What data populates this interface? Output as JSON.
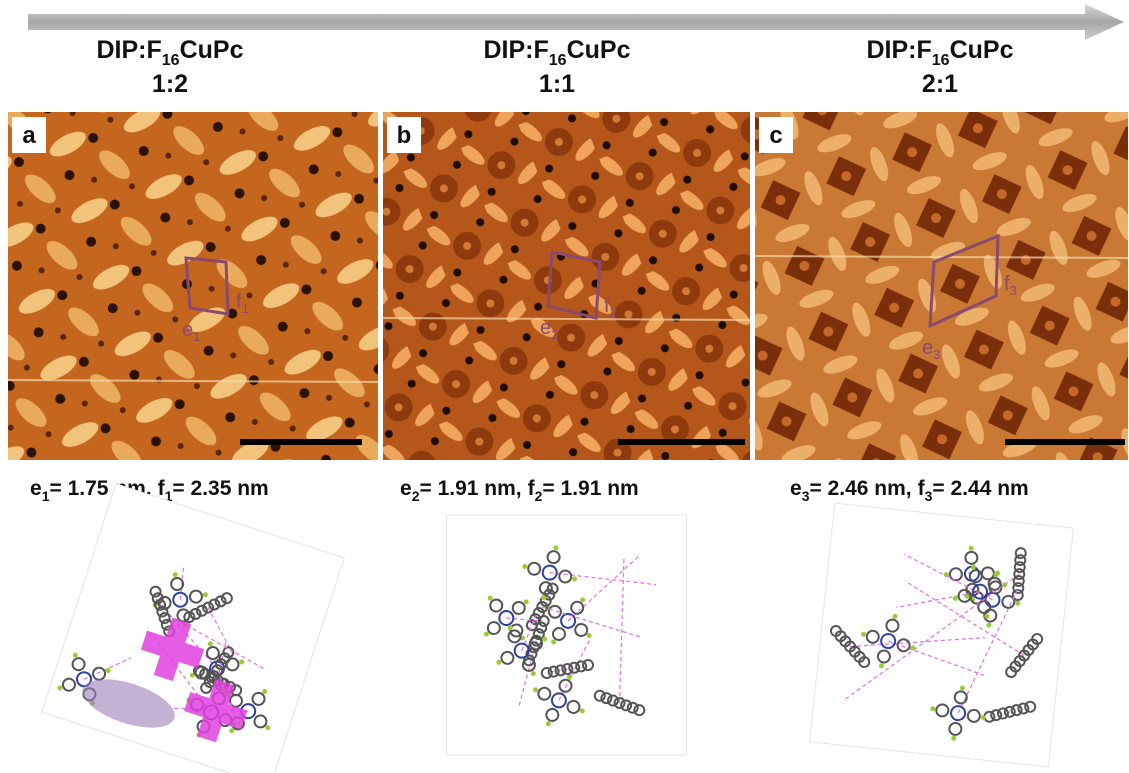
{
  "panels": [
    {
      "label": "a",
      "title": {
        "base": "DIP:F",
        "sub": "16",
        "rest": "CuPc"
      },
      "ratio": "1:2",
      "measure": {
        "e": "e",
        "e_sub": "1",
        "e_value": "= 1.75 nm,",
        "f": "f",
        "f_sub": "1",
        "f_value": "= 2.35 nm"
      },
      "marks": {
        "e": "e",
        "e_sub": "1",
        "f": "f",
        "f_sub": "1"
      }
    },
    {
      "label": "b",
      "title": {
        "base": "DIP:F",
        "sub": "16",
        "rest": "CuPc"
      },
      "ratio": "1:1",
      "measure": {
        "e": "e",
        "e_sub": "2",
        "e_value": "= 1.91 nm,",
        "f": "f",
        "f_sub": "2",
        "f_value": "= 1.91 nm"
      },
      "marks": {
        "e": "e",
        "e_sub": "2",
        "f": "f",
        "f_sub": "2"
      }
    },
    {
      "label": "c",
      "title": {
        "base": "DIP:F",
        "sub": "16",
        "rest": "CuPc"
      },
      "ratio": "2:1",
      "measure": {
        "e": "e",
        "e_sub": "3",
        "e_value": "= 2.46 nm,",
        "f": "f",
        "f_sub": "3",
        "f_value": "= 2.44 nm"
      },
      "marks": {
        "e": "e",
        "e_sub": "3",
        "f": "f",
        "f_sub": "3"
      }
    }
  ]
}
